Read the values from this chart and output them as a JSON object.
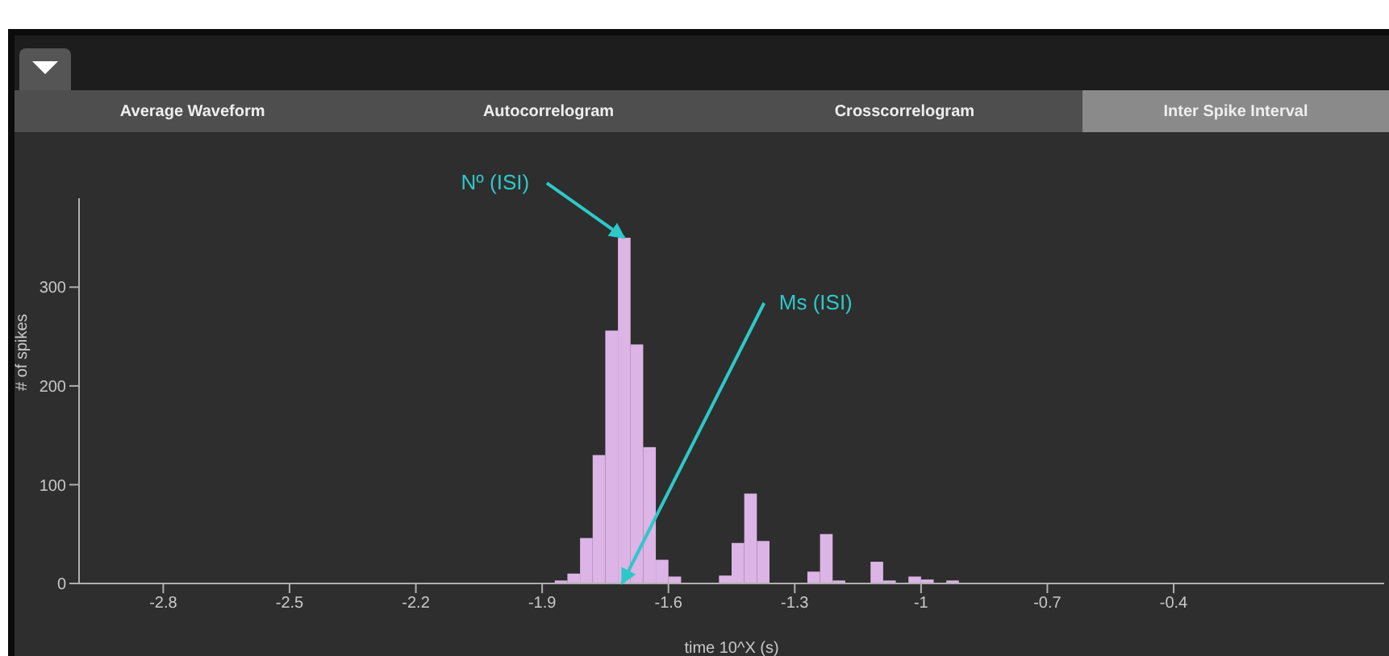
{
  "chart_data": {
    "type": "histogram",
    "xlabel": "time 10^X (s)",
    "ylabel": "# of spikes",
    "bins": [
      -1.87,
      -1.84,
      -1.81,
      -1.78,
      -1.75,
      -1.72,
      -1.69,
      -1.66,
      -1.63,
      -1.6,
      -1.57,
      -1.54,
      -1.51,
      -1.48,
      -1.45,
      -1.42,
      -1.39,
      -1.36,
      -1.33,
      -1.3,
      -1.27,
      -1.24,
      -1.21,
      -1.18,
      -1.15,
      -1.12,
      -1.09,
      -1.06,
      -1.03,
      -1.0,
      -0.97,
      -0.94,
      -0.91
    ],
    "values": [
      3,
      10,
      46,
      130,
      256,
      350,
      242,
      138,
      24,
      7,
      0,
      0,
      0,
      8,
      41,
      91,
      43,
      0,
      0,
      0,
      12,
      50,
      3,
      0,
      0,
      22,
      3,
      0,
      7,
      4,
      0,
      3
    ],
    "color": "#dcb4e6",
    "xlim": [
      -3.0,
      0.1
    ],
    "xticks": [
      -2.8,
      -2.5,
      -2.2,
      -1.9,
      -1.6,
      -1.3,
      -1,
      -0.7,
      -0.4
    ],
    "ylim": [
      0,
      390
    ],
    "yticks": [
      0,
      100,
      200,
      300
    ],
    "grid": false,
    "legend": false,
    "annotations": [
      "Average Waveform",
      "Autocorrelogram",
      "Crosscorrelogram",
      "Inter Spike Interval",
      {
        "text": "Nº (ISI)",
        "x": -1.705,
        "y": 350
      },
      {
        "text": "Ms (ISI)",
        "x": -1.71,
        "y": 0
      }
    ]
  }
}
